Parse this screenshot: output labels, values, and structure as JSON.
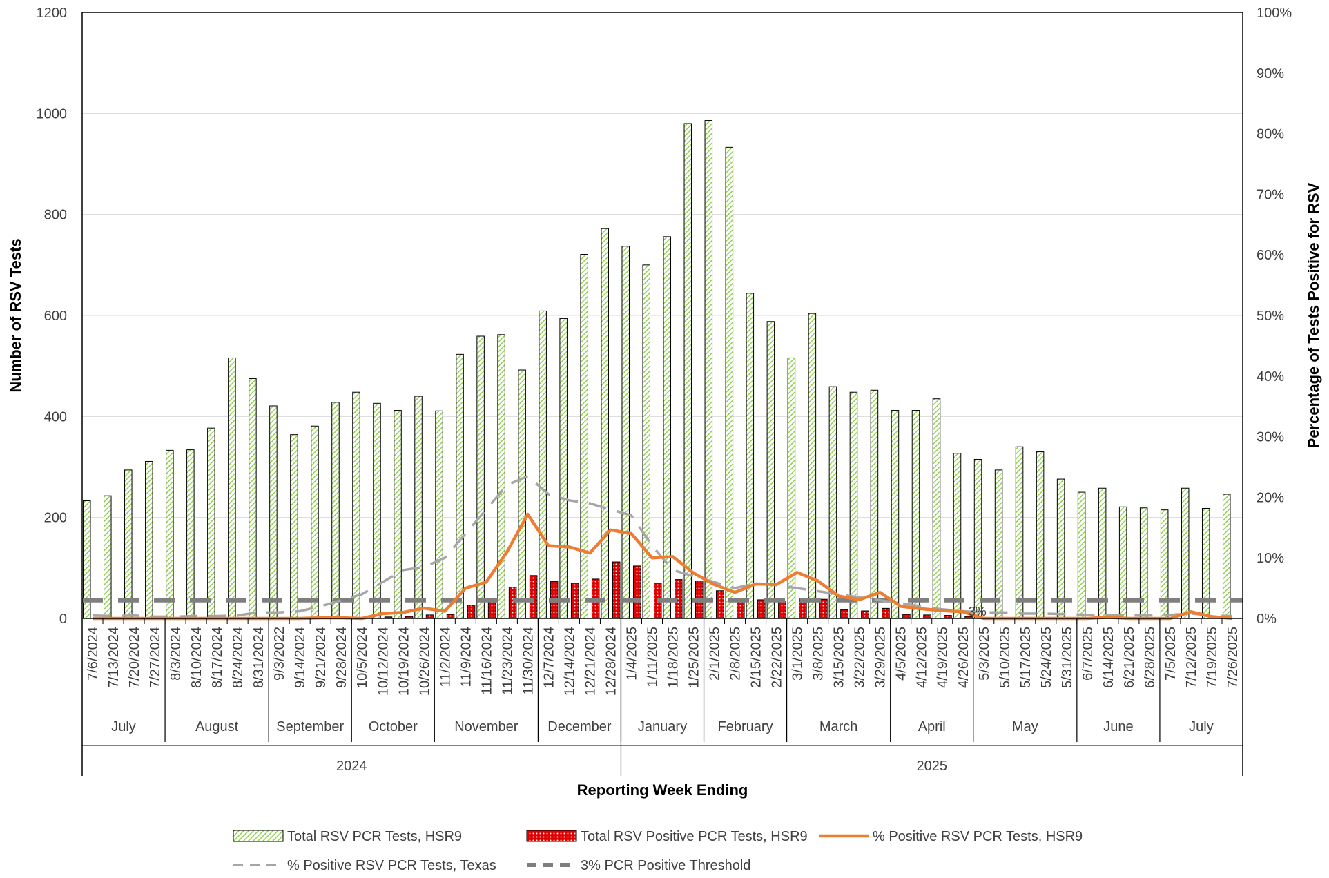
{
  "chart_data": {
    "type": "bar",
    "xlabel": "Reporting Week Ending",
    "ylabel": "Number of RSV Tests",
    "y2label": "Percentage of Tests Positive for RSV",
    "ylim": [
      0,
      1200
    ],
    "y_ticks": [
      "0",
      "200",
      "400",
      "600",
      "800",
      "1000",
      "1200"
    ],
    "y2lim": [
      0,
      100
    ],
    "y2_ticks": [
      "0%",
      "10%",
      "20%",
      "30%",
      "40%",
      "50%",
      "60%",
      "70%",
      "80%",
      "90%",
      "100%"
    ],
    "grid": "horizontal",
    "legend_position": "bottom",
    "categories": [
      "7/6/2024",
      "7/13/2024",
      "7/20/2024",
      "7/27/2024",
      "8/3/2024",
      "8/10/2024",
      "8/17/2024",
      "8/24/2024",
      "8/31/2024",
      "9/3/2022",
      "9/14/2024",
      "9/21/2024",
      "9/28/2024",
      "10/5/2024",
      "10/12/2024",
      "10/19/2024",
      "10/26/2024",
      "11/2/2024",
      "11/9/2024",
      "11/16/2024",
      "11/23/2024",
      "11/30/2024",
      "12/7/2024",
      "12/14/2024",
      "12/21/2024",
      "12/28/2024",
      "1/4/2025",
      "1/11/2025",
      "1/18/2025",
      "1/25/2025",
      "2/1/2025",
      "2/8/2025",
      "2/15/2025",
      "2/22/2025",
      "3/1/2025",
      "3/8/2025",
      "3/15/2025",
      "3/22/2025",
      "3/29/2025",
      "4/5/2025",
      "4/12/2025",
      "4/19/2025",
      "4/26/2025",
      "5/3/2025",
      "5/10/2025",
      "5/17/2025",
      "5/24/2025",
      "5/31/2025",
      "6/7/2025",
      "6/14/2025",
      "6/21/2025",
      "6/28/2025",
      "7/5/2025",
      "7/12/2025",
      "7/19/2025",
      "7/26/2025"
    ],
    "months": [
      {
        "label": "July",
        "count": 4
      },
      {
        "label": "August",
        "count": 5
      },
      {
        "label": "September",
        "count": 4
      },
      {
        "label": "October",
        "count": 4
      },
      {
        "label": "November",
        "count": 5
      },
      {
        "label": "December",
        "count": 4
      },
      {
        "label": "January",
        "count": 4
      },
      {
        "label": "February",
        "count": 4
      },
      {
        "label": "March",
        "count": 5
      },
      {
        "label": "April",
        "count": 4
      },
      {
        "label": "May",
        "count": 5
      },
      {
        "label": "June",
        "count": 4
      },
      {
        "label": "July",
        "count": 4
      }
    ],
    "years": [
      {
        "label": "2024",
        "count": 26
      },
      {
        "label": "2025",
        "count": 30
      }
    ],
    "annotation": "3%",
    "series": [
      {
        "name": "Total RSV PCR Tests, HSR9",
        "kind": "bar",
        "axis": "left",
        "color": "#92d050",
        "values": [
          233,
          243,
          294,
          311,
          333,
          334,
          377,
          516,
          475,
          421,
          364,
          381,
          428,
          448,
          426,
          412,
          440,
          411,
          523,
          559,
          562,
          492,
          609,
          594,
          721,
          772,
          737,
          700,
          756,
          980,
          986,
          933,
          644,
          588,
          516,
          604,
          459,
          448,
          452,
          412,
          412,
          435,
          327,
          315,
          294,
          340,
          330,
          276,
          250,
          258,
          221,
          219,
          215,
          258,
          218,
          246
        ]
      },
      {
        "name": "Total RSV Positive PCR Tests, HSR9",
        "kind": "bar",
        "axis": "left",
        "color": "#e00000",
        "values": [
          0,
          0,
          0,
          0,
          0,
          0,
          0,
          0,
          0,
          0,
          0,
          0,
          0,
          0,
          3,
          4,
          7,
          8,
          26,
          34,
          62,
          85,
          73,
          70,
          78,
          112,
          104,
          70,
          77,
          74,
          55,
          40,
          37,
          33,
          40,
          38,
          17,
          15,
          20,
          8,
          7,
          6,
          4,
          0,
          0,
          0,
          0,
          0,
          0,
          0,
          0,
          0,
          0,
          0,
          0,
          0
        ]
      },
      {
        "name": "% Positive RSV PCR Tests, HSR9",
        "kind": "line",
        "axis": "right",
        "color": "#ed7d31",
        "values": [
          0,
          0,
          0,
          0,
          0,
          0,
          0,
          0,
          0,
          0,
          0,
          0.1,
          0.1,
          0,
          0.8,
          1.0,
          1.7,
          1.2,
          5.0,
          6.0,
          11.0,
          17.2,
          12.0,
          11.8,
          10.8,
          14.6,
          14.0,
          10.0,
          10.2,
          7.5,
          5.6,
          4.3,
          5.7,
          5.6,
          7.6,
          6.2,
          3.7,
          3.1,
          4.3,
          2.0,
          1.6,
          1.3,
          1.1,
          0,
          0,
          0,
          0,
          0,
          0,
          0.2,
          0,
          0,
          0,
          1.1,
          0.3,
          0
        ]
      },
      {
        "name": "% Positive RSV PCR Tests, Texas",
        "kind": "line",
        "axis": "right",
        "color": "#a6a6a6",
        "values": [
          0.5,
          0.4,
          0.5,
          0.3,
          0.3,
          0.4,
          0.4,
          0.5,
          1.0,
          1.0,
          1.2,
          2.0,
          3.0,
          4.0,
          6.0,
          8.0,
          8.5,
          10.0,
          14.0,
          18.0,
          22.0,
          23.5,
          20.5,
          19.5,
          19.0,
          18.0,
          17.0,
          12.0,
          8.0,
          7.0,
          6.0,
          5.0,
          5.8,
          5.5,
          5.0,
          4.5,
          4.0,
          3.5,
          3.0,
          2.5,
          2.0,
          1.5,
          1.2,
          1.0,
          1.0,
          0.8,
          0.8,
          0.7,
          0.6,
          0.6,
          0.5,
          0.5,
          0.6,
          0.8,
          0.5,
          0.4
        ]
      },
      {
        "name": "3% PCR Positive Threshold",
        "kind": "line",
        "axis": "right",
        "color": "#7f7f7f",
        "values": [
          3,
          3,
          3,
          3,
          3,
          3,
          3,
          3,
          3,
          3,
          3,
          3,
          3,
          3,
          3,
          3,
          3,
          3,
          3,
          3,
          3,
          3,
          3,
          3,
          3,
          3,
          3,
          3,
          3,
          3,
          3,
          3,
          3,
          3,
          3,
          3,
          3,
          3,
          3,
          3,
          3,
          3,
          3,
          3,
          3,
          3,
          3,
          3,
          3,
          3,
          3,
          3,
          3,
          3,
          3,
          3
        ]
      }
    ]
  }
}
